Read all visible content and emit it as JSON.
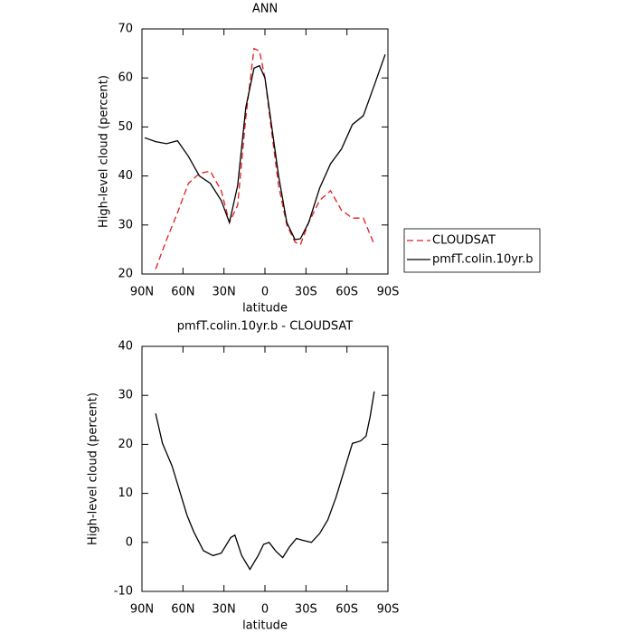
{
  "chart_data": [
    {
      "type": "line",
      "title": "ANN",
      "xlabel": "latitude",
      "ylabel": "High-level cloud (percent)",
      "x": [
        88,
        80,
        72,
        64,
        56,
        48,
        40,
        32,
        26,
        20,
        14,
        8,
        4,
        0,
        -4,
        -10,
        -16,
        -22,
        -26,
        -32,
        -40,
        -48,
        -56,
        -64,
        -72,
        -80,
        -88
      ],
      "series": [
        {
          "name": "CLOUDSAT",
          "color": "#e41a1c",
          "style": "dashed",
          "values": [
            null,
            21,
            27,
            32.5,
            38.5,
            40.5,
            41,
            37,
            30.5,
            34,
            52,
            66,
            65.5,
            60,
            51,
            38,
            30,
            26.5,
            26,
            30.5,
            35,
            37,
            33,
            31.4,
            31.4,
            26,
            null
          ]
        },
        {
          "name": "pmfT.colin.10yr.b",
          "color": "#000000",
          "style": "solid",
          "values": [
            47.8,
            47,
            46.6,
            47.2,
            44,
            40,
            38.5,
            35,
            30.5,
            38,
            54,
            62,
            62.5,
            60,
            52,
            40,
            30.5,
            27,
            27.2,
            30.5,
            37.5,
            42.5,
            45.5,
            50.5,
            52.3,
            58.5,
            64.8
          ]
        }
      ],
      "xlim": [
        90,
        -90
      ],
      "xticks": [
        {
          "value": 90,
          "label": "90N"
        },
        {
          "value": 60,
          "label": "60N"
        },
        {
          "value": 30,
          "label": "30N"
        },
        0,
        {
          "value": -30,
          "label": "30S"
        },
        {
          "value": -60,
          "label": "60S"
        },
        {
          "value": -90,
          "label": "90S"
        }
      ],
      "ylim": [
        20,
        70
      ],
      "yticks": [
        20,
        30,
        40,
        50,
        60,
        70
      ],
      "legend": "right"
    },
    {
      "type": "line",
      "title": "pmfT.colin.10yr.b - CLOUDSAT",
      "xlabel": "latitude",
      "ylabel": "High-level cloud (percent)",
      "x": [
        80,
        75,
        68,
        62,
        57,
        52,
        45,
        38,
        32,
        25,
        22,
        17,
        11,
        5,
        1,
        -3,
        -8,
        -13,
        -18,
        -23,
        -28,
        -34,
        -40,
        -46,
        -52,
        -58,
        -64,
        -70,
        -74,
        -77,
        -80
      ],
      "color": "#000000",
      "values": [
        26.3,
        20.2,
        15.6,
        10.1,
        5.5,
        2.1,
        -1.7,
        -2.7,
        -2.2,
        1,
        1.5,
        -2.7,
        -5.5,
        -2.7,
        -0.4,
        0,
        -1.8,
        -3.1,
        -0.9,
        0.8,
        0.4,
        0,
        1.8,
        4.6,
        9.2,
        14.7,
        20.2,
        20.7,
        21.7,
        25.7,
        30.8
      ],
      "xlim": [
        90,
        -90
      ],
      "xticks": [
        {
          "value": 90,
          "label": "90N"
        },
        {
          "value": 60,
          "label": "60N"
        },
        {
          "value": 30,
          "label": "30N"
        },
        0,
        {
          "value": -30,
          "label": "30S"
        },
        {
          "value": -60,
          "label": "60S"
        },
        {
          "value": -90,
          "label": "90S"
        }
      ],
      "ylim": [
        -10,
        40
      ],
      "yticks": [
        -10,
        0,
        10,
        20,
        30,
        40
      ]
    }
  ]
}
